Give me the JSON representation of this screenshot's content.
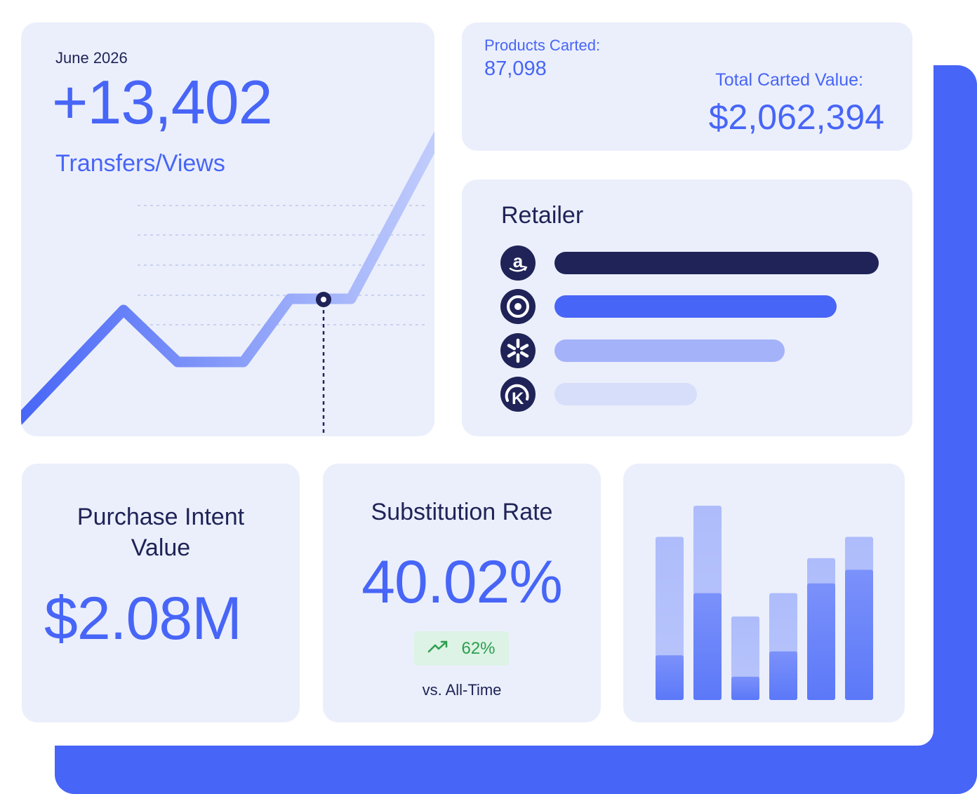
{
  "trend": {
    "period": "June 2026",
    "value": "+13,402",
    "label": "Transfers/Views",
    "line_color": "#4765f7"
  },
  "cart": {
    "products_label": "Products Carted:",
    "products_value": "87,098",
    "value_label": "Total Carted Value:",
    "value": "$2,062,394"
  },
  "retailer": {
    "title": "Retailer",
    "rows": [
      {
        "icon": "amazon-icon",
        "level": 1.0,
        "color": "#1f2357"
      },
      {
        "icon": "target-icon",
        "level": 0.87,
        "color": "#4765f7"
      },
      {
        "icon": "walmart-spark-icon",
        "level": 0.71,
        "color": "#a4b2fa"
      },
      {
        "icon": "kroger-icon",
        "level": 0.44,
        "color": "#d7defa"
      }
    ]
  },
  "intent": {
    "title": "Purchase Intent Value",
    "value": "$2.08M"
  },
  "substitution": {
    "title": "Substitution Rate",
    "value": "40.02%",
    "change": "62%",
    "change_icon": "trending-up-icon",
    "footnote": "vs. All-Time"
  },
  "bars": {
    "stacks": [
      {
        "low": 0.23,
        "total": 0.84
      },
      {
        "low": 0.55,
        "total": 1.0
      },
      {
        "low": 0.12,
        "total": 0.43
      },
      {
        "low": 0.25,
        "total": 0.55
      },
      {
        "low": 0.6,
        "total": 0.73
      },
      {
        "low": 0.67,
        "total": 0.84
      }
    ],
    "colors": {
      "low": "#5b78f8",
      "high": "#b9c6fb"
    }
  },
  "colors": {
    "accent": "#4765f7",
    "navy": "#1f2357",
    "card": "#ebeffb"
  }
}
